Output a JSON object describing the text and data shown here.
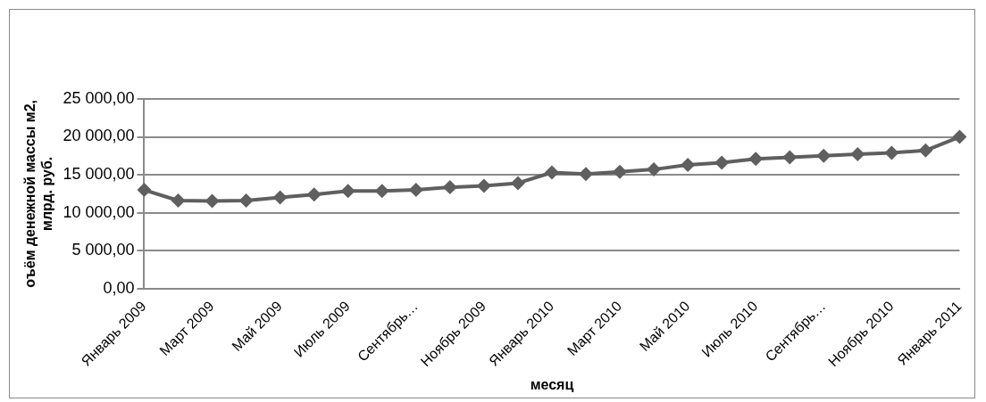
{
  "chart_data": {
    "type": "line",
    "xlabel": "месяц",
    "ylabel": "оъём денежной массы м2, млрд. руб.",
    "categories": [
      "Январь 2009",
      null,
      "Март 2009",
      null,
      "Май 2009",
      null,
      "Июль 2009",
      null,
      "Сентябрь…",
      null,
      "Ноябрь 2009",
      null,
      "Январь 2010",
      null,
      "Март 2010",
      null,
      "Май 2010",
      null,
      "Июль 2010",
      null,
      "Сентябрь…",
      null,
      "Ноябрь 2010",
      null,
      "Январь 2011"
    ],
    "series": [
      {
        "color": "#5f5f5f",
        "values": [
          13000,
          11600,
          11550,
          11600,
          12000,
          12400,
          12850,
          12850,
          13000,
          13350,
          13550,
          13900,
          15300,
          15100,
          15400,
          15700,
          16300,
          16600,
          17100,
          17300,
          17500,
          17700,
          17900,
          18200,
          20000
        ]
      }
    ],
    "ylim": [
      0,
      25000
    ],
    "yticks": [
      {
        "value": 0,
        "label": "0,00"
      },
      {
        "value": 5000,
        "label": "5 000,00"
      },
      {
        "value": 10000,
        "label": "10 000,00"
      },
      {
        "value": 15000,
        "label": "15 000,00"
      },
      {
        "value": 20000,
        "label": "20 000,00"
      },
      {
        "value": 25000,
        "label": "25 000,00"
      }
    ],
    "grid": "y",
    "legend": false,
    "marker": "diamond",
    "line_style": "solid"
  }
}
